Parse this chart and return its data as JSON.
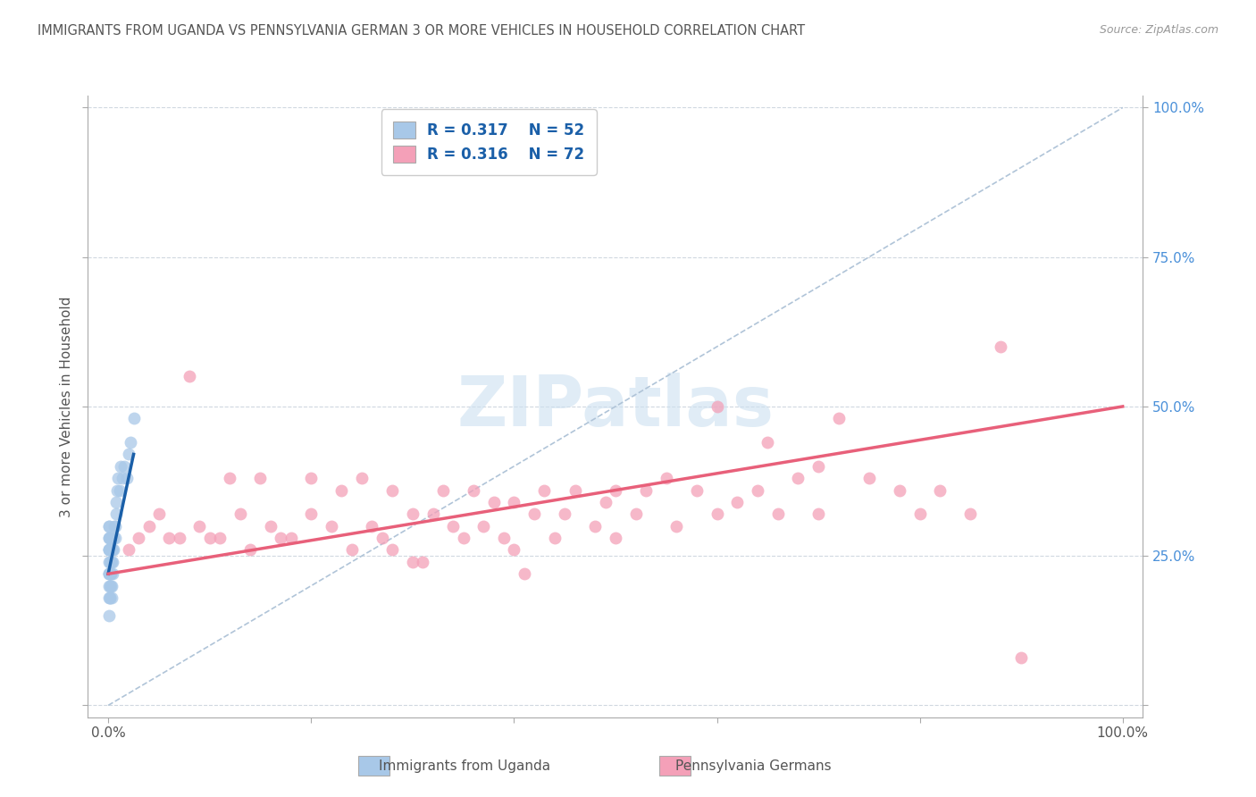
{
  "title": "IMMIGRANTS FROM UGANDA VS PENNSYLVANIA GERMAN 3 OR MORE VEHICLES IN HOUSEHOLD CORRELATION CHART",
  "source": "Source: ZipAtlas.com",
  "ylabel": "3 or more Vehicles in Household",
  "legend_labels": [
    "Immigrants from Uganda",
    "Pennsylvania Germans"
  ],
  "R1": 0.317,
  "N1": 52,
  "R2": 0.316,
  "N2": 72,
  "watermark_text": "ZIPatlas",
  "blue_color": "#a8c8e8",
  "pink_color": "#f4a0b8",
  "blue_line_color": "#1a5fa8",
  "pink_line_color": "#e8607a",
  "diag_line_color": "#b0c4d8",
  "legend_text_color": "#1a5fa8",
  "title_color": "#555555",
  "blue_scatter_x": [
    0.05,
    0.05,
    0.05,
    0.05,
    0.08,
    0.08,
    0.08,
    0.1,
    0.1,
    0.1,
    0.1,
    0.12,
    0.12,
    0.15,
    0.15,
    0.15,
    0.15,
    0.18,
    0.18,
    0.2,
    0.2,
    0.2,
    0.22,
    0.22,
    0.25,
    0.25,
    0.28,
    0.3,
    0.3,
    0.35,
    0.35,
    0.4,
    0.4,
    0.45,
    0.5,
    0.55,
    0.6,
    0.65,
    0.7,
    0.75,
    0.8,
    0.9,
    1.0,
    1.1,
    1.2,
    1.4,
    1.6,
    1.8,
    2.0,
    2.2,
    2.5,
    0.05
  ],
  "blue_scatter_y": [
    22.0,
    26.0,
    28.0,
    30.0,
    20.0,
    24.0,
    28.0,
    18.0,
    22.0,
    26.0,
    30.0,
    22.0,
    26.0,
    18.0,
    22.0,
    26.0,
    28.0,
    20.0,
    26.0,
    18.0,
    24.0,
    28.0,
    22.0,
    26.0,
    20.0,
    24.0,
    22.0,
    18.0,
    26.0,
    20.0,
    24.0,
    22.0,
    26.0,
    24.0,
    28.0,
    26.0,
    30.0,
    28.0,
    30.0,
    32.0,
    34.0,
    36.0,
    38.0,
    36.0,
    40.0,
    38.0,
    40.0,
    38.0,
    42.0,
    44.0,
    48.0,
    15.0
  ],
  "pink_scatter_x": [
    2.0,
    4.0,
    5.0,
    6.0,
    8.0,
    9.0,
    10.0,
    12.0,
    13.0,
    14.0,
    15.0,
    16.0,
    18.0,
    20.0,
    20.0,
    22.0,
    23.0,
    24.0,
    25.0,
    26.0,
    28.0,
    28.0,
    30.0,
    30.0,
    32.0,
    33.0,
    34.0,
    35.0,
    36.0,
    37.0,
    38.0,
    39.0,
    40.0,
    40.0,
    42.0,
    43.0,
    44.0,
    45.0,
    46.0,
    48.0,
    49.0,
    50.0,
    50.0,
    52.0,
    53.0,
    55.0,
    56.0,
    58.0,
    60.0,
    60.0,
    62.0,
    64.0,
    65.0,
    66.0,
    68.0,
    70.0,
    70.0,
    72.0,
    75.0,
    78.0,
    80.0,
    82.0,
    85.0,
    88.0,
    90.0,
    3.0,
    7.0,
    11.0,
    17.0,
    27.0,
    31.0,
    41.0
  ],
  "pink_scatter_y": [
    26.0,
    30.0,
    32.0,
    28.0,
    55.0,
    30.0,
    28.0,
    38.0,
    32.0,
    26.0,
    38.0,
    30.0,
    28.0,
    38.0,
    32.0,
    30.0,
    36.0,
    26.0,
    38.0,
    30.0,
    36.0,
    26.0,
    32.0,
    24.0,
    32.0,
    36.0,
    30.0,
    28.0,
    36.0,
    30.0,
    34.0,
    28.0,
    34.0,
    26.0,
    32.0,
    36.0,
    28.0,
    32.0,
    36.0,
    30.0,
    34.0,
    36.0,
    28.0,
    32.0,
    36.0,
    38.0,
    30.0,
    36.0,
    50.0,
    32.0,
    34.0,
    36.0,
    44.0,
    32.0,
    38.0,
    40.0,
    32.0,
    48.0,
    38.0,
    36.0,
    32.0,
    36.0,
    32.0,
    60.0,
    8.0,
    28.0,
    28.0,
    28.0,
    28.0,
    28.0,
    24.0,
    22.0
  ],
  "blue_line_x": [
    0.0,
    2.5
  ],
  "blue_line_y": [
    22.0,
    42.0
  ],
  "pink_line_x": [
    0.0,
    100.0
  ],
  "pink_line_y": [
    22.0,
    50.0
  ],
  "diag_line_x": [
    0.0,
    100.0
  ],
  "diag_line_y": [
    0.0,
    100.0
  ],
  "xlim": [
    -2,
    102
  ],
  "ylim": [
    -2,
    102
  ],
  "xtick_positions": [
    0,
    20,
    40,
    60,
    80,
    100
  ],
  "ytick_positions": [
    0,
    25,
    50,
    75,
    100
  ],
  "right_ytick_labels": [
    "",
    "25.0%",
    "50.0%",
    "75.0%",
    "100.0%"
  ]
}
